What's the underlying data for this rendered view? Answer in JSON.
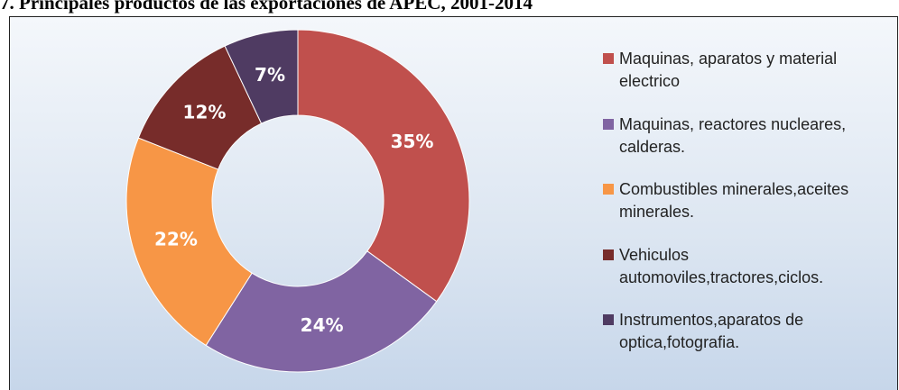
{
  "chart_data": {
    "type": "donut",
    "title": "7. Principales productos de las exportaciones de APEC, 2001-2014",
    "categories": [
      "Maquinas, aparatos y material electrico",
      "Maquinas, reactores nucleares, calderas.",
      "Combustibles minerales,aceites minerales.",
      "Vehiculos automoviles,tractores,ciclos.",
      "Instrumentos,aparatos de optica,fotografia."
    ],
    "values": [
      35,
      24,
      22,
      12,
      7
    ],
    "value_labels": [
      "35%",
      "24%",
      "22%",
      "12%",
      "7%"
    ],
    "colors": [
      "#c0504d",
      "#8064a2",
      "#f79646",
      "#772c2a",
      "#4f3b62"
    ],
    "legend": "right"
  }
}
